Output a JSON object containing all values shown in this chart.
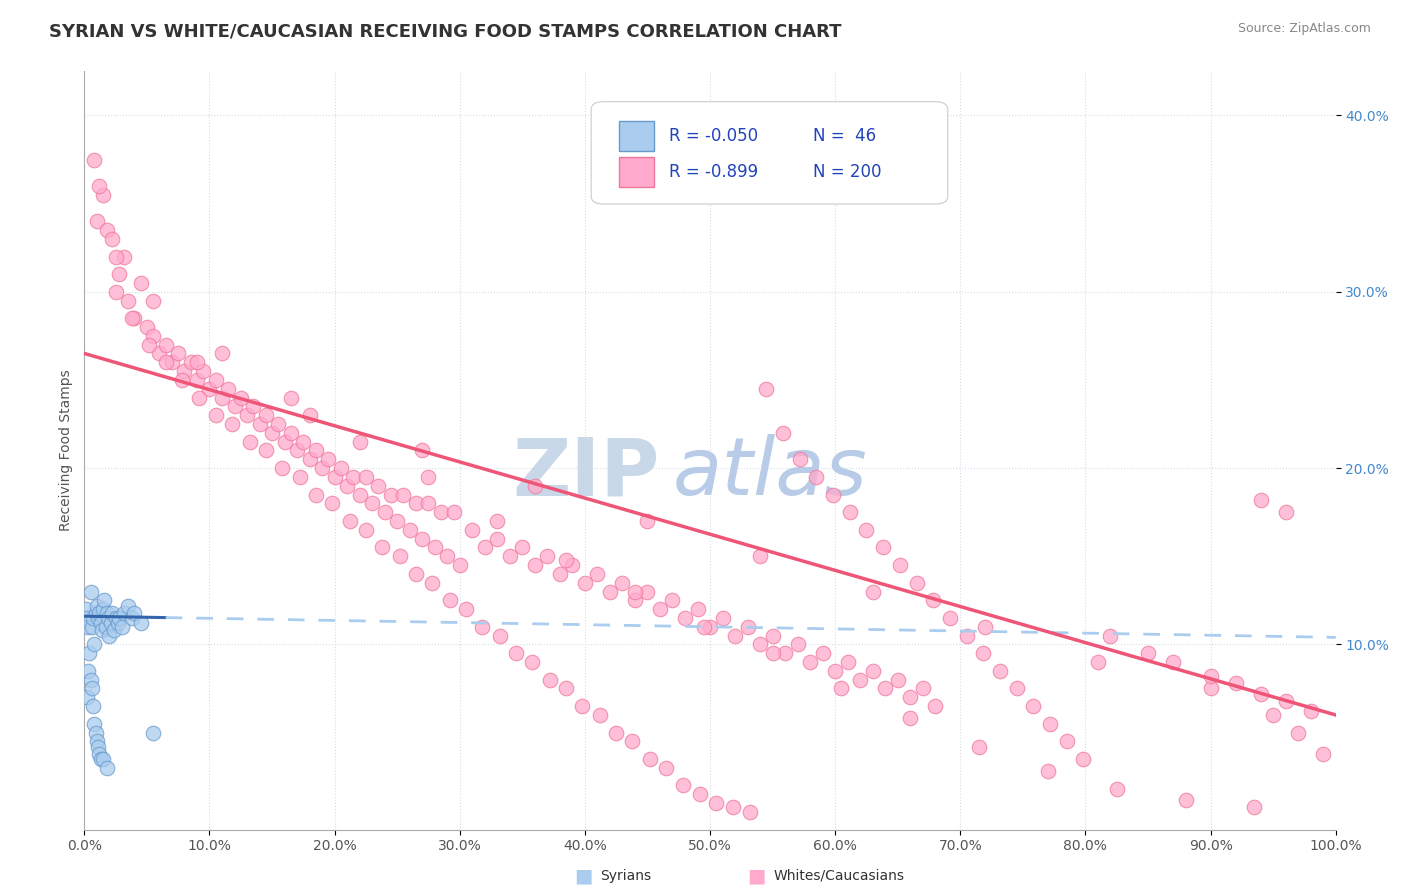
{
  "title": "SYRIAN VS WHITE/CAUCASIAN RECEIVING FOOD STAMPS CORRELATION CHART",
  "source": "Source: ZipAtlas.com",
  "ylabel": "Receiving Food Stamps",
  "xlim": [
    0.0,
    1.0
  ],
  "ylim": [
    -0.005,
    0.425
  ],
  "xticks": [
    0.0,
    0.1,
    0.2,
    0.3,
    0.4,
    0.5,
    0.6,
    0.7,
    0.8,
    0.9,
    1.0
  ],
  "xtick_labels": [
    "0.0%",
    "10.0%",
    "20.0%",
    "30.0%",
    "40.0%",
    "50.0%",
    "60.0%",
    "70.0%",
    "80.0%",
    "90.0%",
    "100.0%"
  ],
  "yticks": [
    0.1,
    0.2,
    0.3,
    0.4
  ],
  "ytick_labels": [
    "10.0%",
    "20.0%",
    "30.0%",
    "40.0%"
  ],
  "syrian_color": "#aaccee",
  "syrian_edge": "#6699cc",
  "white_color": "#ffaacc",
  "white_edge": "#ee7799",
  "trend_syrian_solid_color": "#3366aa",
  "trend_syrian_dash_color": "#aaccee",
  "trend_white_color": "#ee5577",
  "legend_box_color": "#aaccee",
  "legend_box_color2": "#ffaacc",
  "R_syrian": -0.05,
  "N_syrian": 46,
  "R_white": -0.899,
  "N_white": 200,
  "watermark_zip": "ZIP",
  "watermark_atlas": "atlas",
  "watermark_zip_color": "#c8d8e8",
  "watermark_atlas_color": "#b8cce8",
  "title_fontsize": 13,
  "label_fontsize": 10,
  "tick_fontsize": 10,
  "background_color": "#ffffff",
  "grid_color": "#d4dce8",
  "syrian_points_x": [
    0.001,
    0.002,
    0.002,
    0.003,
    0.003,
    0.004,
    0.005,
    0.005,
    0.006,
    0.006,
    0.007,
    0.007,
    0.008,
    0.008,
    0.009,
    0.009,
    0.01,
    0.01,
    0.011,
    0.011,
    0.012,
    0.012,
    0.013,
    0.013,
    0.014,
    0.015,
    0.015,
    0.016,
    0.017,
    0.018,
    0.018,
    0.019,
    0.02,
    0.021,
    0.022,
    0.024,
    0.025,
    0.027,
    0.028,
    0.03,
    0.032,
    0.035,
    0.038,
    0.04,
    0.045,
    0.055
  ],
  "syrian_points_y": [
    0.12,
    0.115,
    0.07,
    0.11,
    0.085,
    0.095,
    0.13,
    0.08,
    0.11,
    0.075,
    0.115,
    0.065,
    0.1,
    0.055,
    0.118,
    0.05,
    0.122,
    0.045,
    0.115,
    0.042,
    0.118,
    0.038,
    0.112,
    0.035,
    0.108,
    0.12,
    0.035,
    0.125,
    0.11,
    0.118,
    0.03,
    0.115,
    0.105,
    0.112,
    0.118,
    0.108,
    0.115,
    0.112,
    0.115,
    0.11,
    0.118,
    0.122,
    0.115,
    0.118,
    0.112,
    0.05
  ],
  "white_points_x": [
    0.008,
    0.01,
    0.015,
    0.018,
    0.022,
    0.025,
    0.028,
    0.032,
    0.035,
    0.04,
    0.045,
    0.05,
    0.055,
    0.06,
    0.065,
    0.07,
    0.075,
    0.08,
    0.085,
    0.09,
    0.095,
    0.1,
    0.105,
    0.11,
    0.115,
    0.12,
    0.125,
    0.13,
    0.135,
    0.14,
    0.145,
    0.15,
    0.155,
    0.16,
    0.165,
    0.17,
    0.175,
    0.18,
    0.185,
    0.19,
    0.195,
    0.2,
    0.205,
    0.21,
    0.215,
    0.22,
    0.225,
    0.23,
    0.235,
    0.24,
    0.245,
    0.25,
    0.255,
    0.26,
    0.265,
    0.27,
    0.275,
    0.28,
    0.285,
    0.29,
    0.295,
    0.3,
    0.31,
    0.32,
    0.33,
    0.34,
    0.35,
    0.36,
    0.37,
    0.38,
    0.39,
    0.4,
    0.41,
    0.42,
    0.43,
    0.44,
    0.45,
    0.46,
    0.47,
    0.48,
    0.49,
    0.5,
    0.51,
    0.52,
    0.53,
    0.54,
    0.55,
    0.56,
    0.57,
    0.58,
    0.59,
    0.6,
    0.61,
    0.62,
    0.63,
    0.64,
    0.65,
    0.66,
    0.67,
    0.68,
    0.012,
    0.025,
    0.038,
    0.052,
    0.065,
    0.078,
    0.092,
    0.105,
    0.118,
    0.132,
    0.145,
    0.158,
    0.172,
    0.185,
    0.198,
    0.212,
    0.225,
    0.238,
    0.252,
    0.265,
    0.278,
    0.292,
    0.305,
    0.318,
    0.332,
    0.345,
    0.358,
    0.372,
    0.385,
    0.398,
    0.412,
    0.425,
    0.438,
    0.452,
    0.465,
    0.478,
    0.492,
    0.505,
    0.518,
    0.532,
    0.545,
    0.558,
    0.572,
    0.585,
    0.598,
    0.612,
    0.625,
    0.638,
    0.652,
    0.665,
    0.678,
    0.692,
    0.705,
    0.718,
    0.732,
    0.745,
    0.758,
    0.772,
    0.785,
    0.798,
    0.055,
    0.11,
    0.165,
    0.22,
    0.275,
    0.33,
    0.385,
    0.44,
    0.495,
    0.55,
    0.605,
    0.66,
    0.715,
    0.77,
    0.825,
    0.88,
    0.935,
    0.09,
    0.18,
    0.27,
    0.36,
    0.45,
    0.54,
    0.63,
    0.72,
    0.81,
    0.9,
    0.95,
    0.97,
    0.99,
    0.82,
    0.85,
    0.87,
    0.9,
    0.92,
    0.94,
    0.96,
    0.98,
    0.96,
    0.94
  ],
  "white_points_y": [
    0.375,
    0.34,
    0.355,
    0.335,
    0.33,
    0.3,
    0.31,
    0.32,
    0.295,
    0.285,
    0.305,
    0.28,
    0.275,
    0.265,
    0.27,
    0.26,
    0.265,
    0.255,
    0.26,
    0.25,
    0.255,
    0.245,
    0.25,
    0.24,
    0.245,
    0.235,
    0.24,
    0.23,
    0.235,
    0.225,
    0.23,
    0.22,
    0.225,
    0.215,
    0.22,
    0.21,
    0.215,
    0.205,
    0.21,
    0.2,
    0.205,
    0.195,
    0.2,
    0.19,
    0.195,
    0.185,
    0.195,
    0.18,
    0.19,
    0.175,
    0.185,
    0.17,
    0.185,
    0.165,
    0.18,
    0.16,
    0.18,
    0.155,
    0.175,
    0.15,
    0.175,
    0.145,
    0.165,
    0.155,
    0.16,
    0.15,
    0.155,
    0.145,
    0.15,
    0.14,
    0.145,
    0.135,
    0.14,
    0.13,
    0.135,
    0.125,
    0.13,
    0.12,
    0.125,
    0.115,
    0.12,
    0.11,
    0.115,
    0.105,
    0.11,
    0.1,
    0.105,
    0.095,
    0.1,
    0.09,
    0.095,
    0.085,
    0.09,
    0.08,
    0.085,
    0.075,
    0.08,
    0.07,
    0.075,
    0.065,
    0.36,
    0.32,
    0.285,
    0.27,
    0.26,
    0.25,
    0.24,
    0.23,
    0.225,
    0.215,
    0.21,
    0.2,
    0.195,
    0.185,
    0.18,
    0.17,
    0.165,
    0.155,
    0.15,
    0.14,
    0.135,
    0.125,
    0.12,
    0.11,
    0.105,
    0.095,
    0.09,
    0.08,
    0.075,
    0.065,
    0.06,
    0.05,
    0.045,
    0.035,
    0.03,
    0.02,
    0.015,
    0.01,
    0.008,
    0.005,
    0.245,
    0.22,
    0.205,
    0.195,
    0.185,
    0.175,
    0.165,
    0.155,
    0.145,
    0.135,
    0.125,
    0.115,
    0.105,
    0.095,
    0.085,
    0.075,
    0.065,
    0.055,
    0.045,
    0.035,
    0.295,
    0.265,
    0.24,
    0.215,
    0.195,
    0.17,
    0.148,
    0.13,
    0.11,
    0.095,
    0.075,
    0.058,
    0.042,
    0.028,
    0.018,
    0.012,
    0.008,
    0.26,
    0.23,
    0.21,
    0.19,
    0.17,
    0.15,
    0.13,
    0.11,
    0.09,
    0.075,
    0.06,
    0.05,
    0.038,
    0.105,
    0.095,
    0.09,
    0.082,
    0.078,
    0.072,
    0.068,
    0.062,
    0.175,
    0.182
  ]
}
